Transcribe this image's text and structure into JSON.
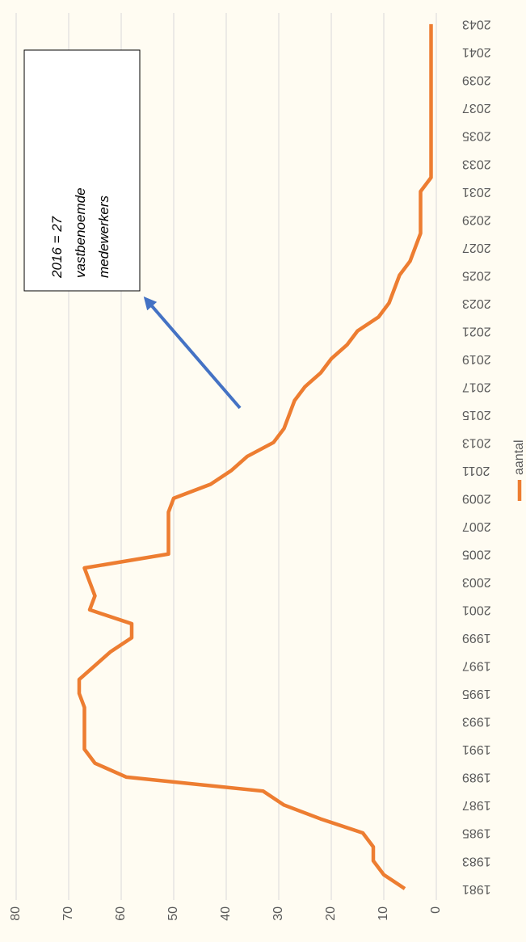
{
  "chart_data": {
    "type": "line",
    "categories": [
      "1981",
      null,
      "1983",
      null,
      "1985",
      null,
      "1987",
      null,
      "1989",
      null,
      "1991",
      null,
      "1993",
      null,
      "1995",
      null,
      "1997",
      null,
      "1999",
      null,
      "2001",
      null,
      "2003",
      null,
      "2005",
      null,
      "2007",
      null,
      "2009",
      null,
      "2011",
      null,
      "2013",
      null,
      "2015",
      null,
      "2017",
      null,
      "2019",
      null,
      "2021",
      null,
      "2023",
      null,
      "2025",
      null,
      "2027",
      null,
      "2029",
      null,
      "2031",
      null,
      "2033",
      null,
      "2035",
      null,
      "2037",
      null,
      "2039",
      null,
      "2041",
      null,
      "2043"
    ],
    "series": [
      {
        "name": "aantal",
        "color": "#ed7d31",
        "values": [
          6,
          10,
          12,
          12,
          14,
          22,
          29,
          33,
          59,
          65,
          67,
          67,
          67,
          67,
          68,
          68,
          65,
          62,
          58,
          58,
          66,
          65,
          66,
          67,
          51,
          51,
          51,
          51,
          50,
          43,
          39,
          36,
          31,
          29,
          28,
          27,
          25,
          22,
          20,
          17,
          15,
          11,
          9,
          8,
          7,
          5,
          4,
          3,
          3,
          3,
          3,
          1,
          1,
          1,
          1,
          1,
          1,
          1,
          1,
          1,
          1,
          1,
          1
        ]
      }
    ],
    "ylim": [
      0,
      80
    ],
    "yticks": [
      0,
      10,
      20,
      30,
      40,
      50,
      60,
      70,
      80
    ],
    "grid": true,
    "annotation": [
      "2016 = 27",
      "vastbenoemde",
      "medewerkers"
    ]
  }
}
